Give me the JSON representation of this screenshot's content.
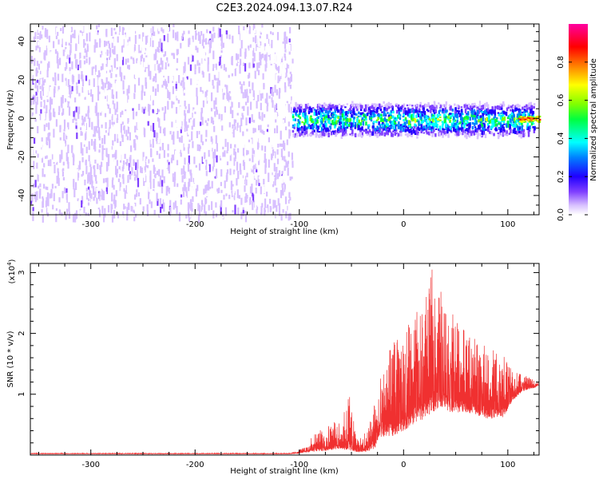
{
  "title": "C2E3.2024.094.13.07.R24",
  "colors": {
    "snr_line": "#f03030",
    "axis": "#000000"
  },
  "chart_data": [
    {
      "type": "heatmap",
      "xlabel": "Height of straight line (km)",
      "ylabel": "Frequency (Hz)",
      "xlim": [
        -358,
        130
      ],
      "ylim": [
        -50,
        49
      ],
      "x_ticks": [
        -300,
        -200,
        -100,
        0,
        100
      ],
      "y_ticks": [
        -40,
        -20,
        0,
        20,
        40
      ],
      "grid": false,
      "colorbar": {
        "label": "Normalized spectral amplitude",
        "range": [
          0.0,
          1.0
        ],
        "ticks": [
          "0.0",
          "0.2",
          "0.4",
          "0.6",
          "0.8"
        ],
        "colormap": [
          "#ffffff",
          "#d8c0ff",
          "#8040ff",
          "#2000ff",
          "#0080ff",
          "#00ffff",
          "#00ff40",
          "#80ff00",
          "#ffff00",
          "#ff8000",
          "#ff0000",
          "#ff00a0"
        ]
      },
      "regions": [
        {
          "x_range": [
            -358,
            -107
          ],
          "description_level": "broadband noise",
          "freq_range": [
            -50,
            49
          ],
          "amplitude": 0.12
        },
        {
          "x_range": [
            -107,
            125
          ],
          "description_level": "narrow signal band",
          "freq_center": 0,
          "freq_halfwidth": 8,
          "amplitude_peak": 0.55
        },
        {
          "x_range": [
            110,
            130
          ],
          "description_level": "strong narrow carrier",
          "freq_center": 0,
          "freq_halfwidth": 1.5,
          "amplitude_peak": 0.95
        }
      ]
    },
    {
      "type": "line",
      "xlabel": "Height of straight line (km)",
      "ylabel": "SNR (10 * v/v)",
      "y_scale_label": "(x10",
      "y_scale_exp": "4",
      "xlim": [
        -358,
        130
      ],
      "ylim": [
        0,
        3.15
      ],
      "x_ticks": [
        -300,
        -200,
        -100,
        0,
        100
      ],
      "y_ticks": [
        1,
        2,
        3
      ],
      "grid": false,
      "envelope": [
        {
          "x": -358,
          "baseline": 0.02,
          "peak": 0.03
        },
        {
          "x": -110,
          "baseline": 0.02,
          "peak": 0.03
        },
        {
          "x": -100,
          "baseline": 0.03,
          "peak": 0.08
        },
        {
          "x": -90,
          "baseline": 0.05,
          "peak": 0.25
        },
        {
          "x": -80,
          "baseline": 0.06,
          "peak": 0.45
        },
        {
          "x": -70,
          "baseline": 0.08,
          "peak": 0.55
        },
        {
          "x": -60,
          "baseline": 0.1,
          "peak": 0.55
        },
        {
          "x": -52,
          "baseline": 0.06,
          "peak": 1.0
        },
        {
          "x": -45,
          "baseline": 0.05,
          "peak": 0.25
        },
        {
          "x": -35,
          "baseline": 0.05,
          "peak": 0.4
        },
        {
          "x": -28,
          "baseline": 0.1,
          "peak": 0.9
        },
        {
          "x": -20,
          "baseline": 0.3,
          "peak": 1.4
        },
        {
          "x": -10,
          "baseline": 0.3,
          "peak": 1.9
        },
        {
          "x": 0,
          "baseline": 0.4,
          "peak": 1.9
        },
        {
          "x": 10,
          "baseline": 0.5,
          "peak": 2.5
        },
        {
          "x": 20,
          "baseline": 0.6,
          "peak": 2.5
        },
        {
          "x": 28,
          "baseline": 0.7,
          "peak": 3.1
        },
        {
          "x": 35,
          "baseline": 0.8,
          "peak": 2.8
        },
        {
          "x": 45,
          "baseline": 0.7,
          "peak": 2.4
        },
        {
          "x": 60,
          "baseline": 0.7,
          "peak": 2.0
        },
        {
          "x": 80,
          "baseline": 0.6,
          "peak": 1.8
        },
        {
          "x": 95,
          "baseline": 0.6,
          "peak": 1.7
        },
        {
          "x": 105,
          "baseline": 0.9,
          "peak": 1.4
        },
        {
          "x": 115,
          "baseline": 1.05,
          "peak": 1.35
        },
        {
          "x": 125,
          "baseline": 1.1,
          "peak": 1.25
        },
        {
          "x": 130,
          "baseline": 1.15,
          "peak": 1.2
        }
      ]
    }
  ]
}
